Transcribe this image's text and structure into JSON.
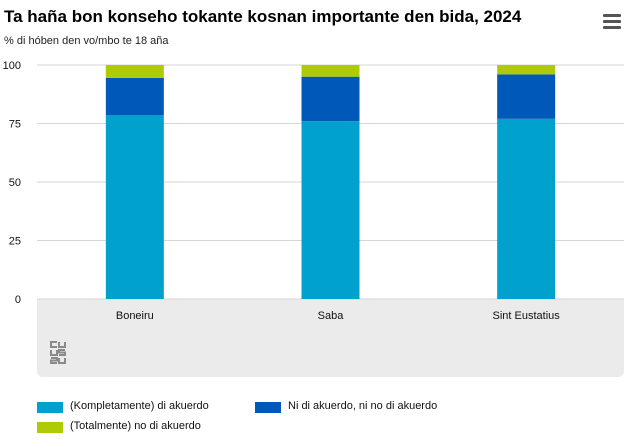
{
  "chart_data": {
    "type": "bar",
    "stacked": true,
    "title": "Ta haña bon konseho tokante kosnan importante den bida, 2024",
    "subtitle": "% di hóben den vo/mbo te 18 aña",
    "categories": [
      "Boneiru",
      "Saba",
      "Sint Eustatius"
    ],
    "series": [
      {
        "name": "(Kompletamente) di akuerdo",
        "color": "#00a1cd",
        "values": [
          78.5,
          76,
          77
        ]
      },
      {
        "name": "Ni di akuerdo, ni no di akuerdo",
        "color": "#0058b8",
        "values": [
          16,
          19,
          19
        ]
      },
      {
        "name": "(Totalmente) no di akuerdo",
        "color": "#afcb05",
        "values": [
          5.5,
          5,
          4
        ]
      }
    ],
    "yticks": [
      0,
      25,
      50,
      75,
      100
    ],
    "ylim": [
      0,
      100
    ],
    "xlabel": "",
    "ylabel": "",
    "grid": true,
    "legend_position": "bottom"
  },
  "logo_name": "cbs-logo-icon",
  "menu_icon": "hamburger-menu-icon"
}
